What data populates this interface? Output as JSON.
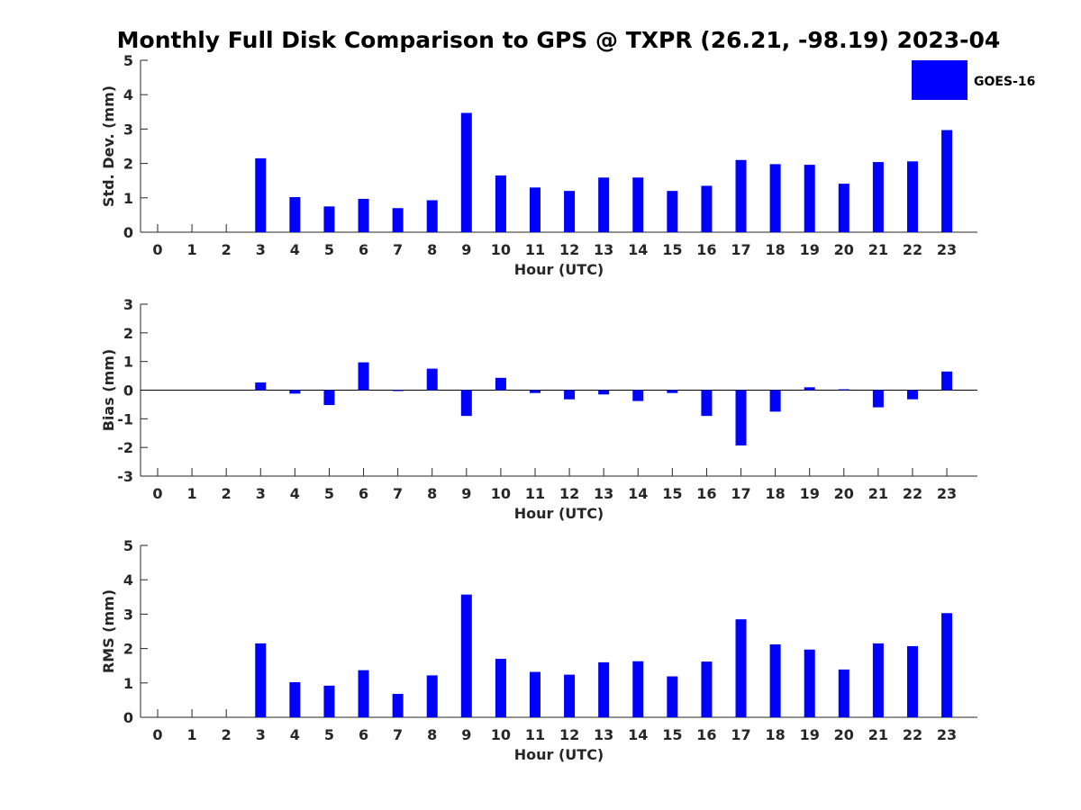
{
  "title": "Monthly Full Disk Comparison to GPS @ TXPR (26.21, -98.19) 2023-04",
  "legend": {
    "label": "GOES-16",
    "color": "#0000ff"
  },
  "chart_data": [
    {
      "type": "bar",
      "categories": [
        "0",
        "1",
        "2",
        "3",
        "4",
        "5",
        "6",
        "7",
        "8",
        "9",
        "10",
        "11",
        "12",
        "13",
        "14",
        "15",
        "16",
        "17",
        "18",
        "19",
        "20",
        "21",
        "22",
        "23"
      ],
      "series": [
        {
          "name": "GOES-16",
          "values": [
            null,
            null,
            null,
            2.15,
            1.02,
            0.75,
            0.97,
            0.7,
            0.93,
            3.47,
            1.65,
            1.3,
            1.2,
            1.59,
            1.59,
            1.2,
            1.35,
            2.1,
            1.98,
            1.96,
            1.41,
            2.04,
            2.06,
            2.97
          ]
        }
      ],
      "xlabel": "Hour (UTC)",
      "ylabel": "Std. Dev. (mm)",
      "ylim": [
        0,
        5
      ],
      "yticks": [
        "0",
        "1",
        "2",
        "3",
        "4",
        "5"
      ]
    },
    {
      "type": "bar",
      "categories": [
        "0",
        "1",
        "2",
        "3",
        "4",
        "5",
        "6",
        "7",
        "8",
        "9",
        "10",
        "11",
        "12",
        "13",
        "14",
        "15",
        "16",
        "17",
        "18",
        "19",
        "20",
        "21",
        "22",
        "23"
      ],
      "series": [
        {
          "name": "GOES-16",
          "values": [
            null,
            null,
            null,
            0.27,
            -0.12,
            -0.52,
            0.97,
            0.0,
            0.75,
            -0.9,
            0.43,
            -0.1,
            -0.32,
            -0.15,
            -0.38,
            -0.1,
            -0.9,
            -1.93,
            -0.75,
            0.1,
            0.03,
            -0.6,
            -0.32,
            0.65
          ]
        }
      ],
      "xlabel": "Hour (UTC)",
      "ylabel": "Bias (mm)",
      "ylim": [
        -3,
        3
      ],
      "yticks": [
        "-3",
        "-2",
        "-1",
        "0",
        "1",
        "2",
        "3"
      ]
    },
    {
      "type": "bar",
      "categories": [
        "0",
        "1",
        "2",
        "3",
        "4",
        "5",
        "6",
        "7",
        "8",
        "9",
        "10",
        "11",
        "12",
        "13",
        "14",
        "15",
        "16",
        "17",
        "18",
        "19",
        "20",
        "21",
        "22",
        "23"
      ],
      "series": [
        {
          "name": "GOES-16",
          "values": [
            null,
            null,
            null,
            2.15,
            1.02,
            0.92,
            1.37,
            0.68,
            1.22,
            3.57,
            1.7,
            1.32,
            1.24,
            1.6,
            1.63,
            1.19,
            1.62,
            2.85,
            2.12,
            1.97,
            1.39,
            2.15,
            2.07,
            3.03
          ]
        }
      ],
      "xlabel": "Hour (UTC)",
      "ylabel": "RMS (mm)",
      "ylim": [
        0,
        5
      ],
      "yticks": [
        "0",
        "1",
        "2",
        "3",
        "4",
        "5"
      ]
    }
  ]
}
